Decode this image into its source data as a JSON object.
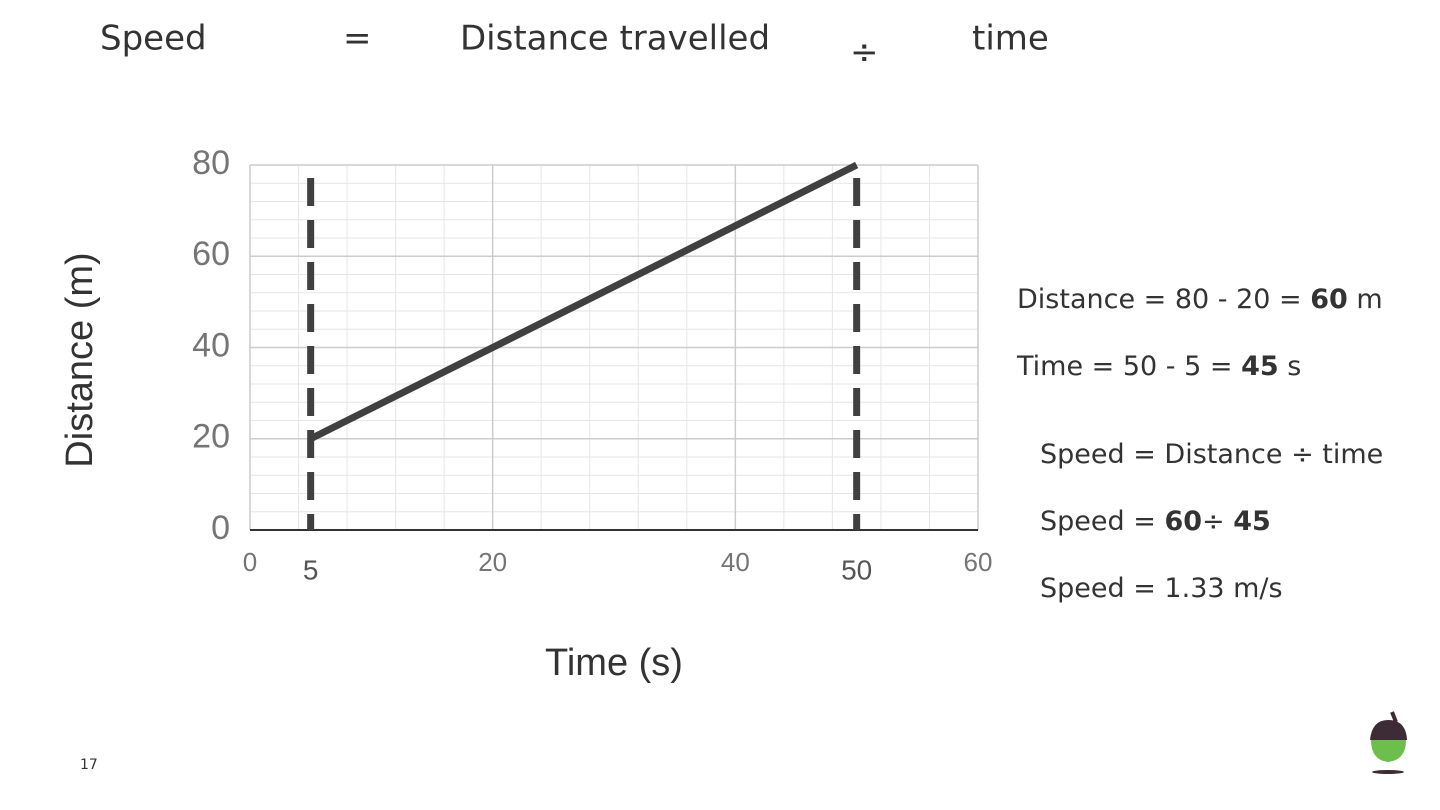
{
  "header": {
    "parts": [
      "Speed",
      "=",
      "Distance travelled",
      "÷",
      "time"
    ]
  },
  "chart_data": {
    "type": "line",
    "x": [
      5,
      50
    ],
    "series": [
      {
        "name": null,
        "color": "#404040",
        "values": [
          20,
          80
        ]
      }
    ],
    "xlim": [
      0,
      60
    ],
    "xticks": [
      0,
      20,
      40,
      60
    ],
    "ylim": [
      0,
      80
    ],
    "yticks": [
      0,
      20,
      40,
      60,
      80
    ],
    "x_label": "Time (s)",
    "y_label": "Distance (m)",
    "grid": true,
    "minor_divisions": 5,
    "vlines": [
      5,
      50
    ]
  },
  "working": [
    [
      {
        "text": "Distance = 80 - 20 = "
      },
      {
        "text": "60",
        "bold": true
      },
      {
        "text": " m"
      }
    ],
    [
      {
        "text": "Time = 50 - 5 = "
      },
      {
        "text": "45",
        "bold": true
      },
      {
        "text": " s"
      }
    ],
    [
      {
        "text": "Speed = Distance ÷ time"
      }
    ],
    [
      {
        "text": "Speed = "
      },
      {
        "text": "60",
        "bold": true
      },
      {
        "text": "÷ "
      },
      {
        "text": "45",
        "bold": true
      }
    ],
    [
      {
        "text": "Speed = 1.33 m/s"
      }
    ]
  ],
  "page_number": "17"
}
